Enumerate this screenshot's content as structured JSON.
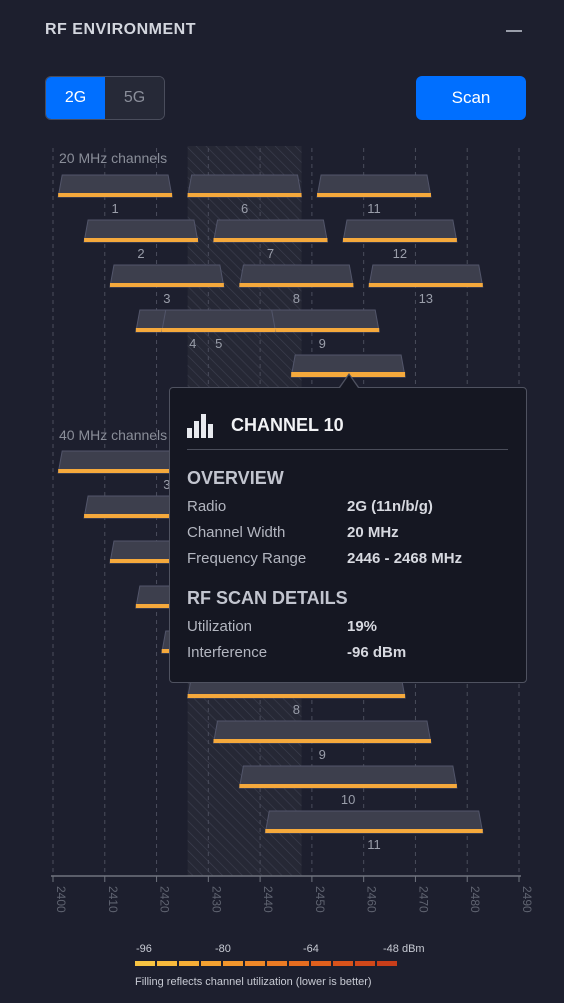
{
  "panel": {
    "title": "RF ENVIRONMENT"
  },
  "band_toggle": {
    "options": [
      "2G",
      "5G"
    ],
    "selected": "2G"
  },
  "scan_button": {
    "label": "Scan"
  },
  "colors": {
    "accent": "#006fff",
    "fill": "#f5a93c",
    "channel_block": "#3d3f4d",
    "background": "#1d1f2e"
  },
  "chart_data": {
    "type": "channel-map",
    "x_axis": {
      "ticks": [
        "2400",
        "2410",
        "2420",
        "2430",
        "2440",
        "2450",
        "2460",
        "2470",
        "2480",
        "2490"
      ],
      "min": 2400,
      "max": 2490,
      "unit": "MHz"
    },
    "highlight_range": [
      2426,
      2448
    ],
    "groups": [
      {
        "label": "20 MHz channels",
        "channels": [
          {
            "ch": "1",
            "lo": 2401,
            "hi": 2423,
            "util": 0.1
          },
          {
            "ch": "6",
            "lo": 2426,
            "hi": 2448,
            "util": 0.1
          },
          {
            "ch": "11",
            "lo": 2451,
            "hi": 2473,
            "util": 0.1
          },
          {
            "ch": "2",
            "lo": 2406,
            "hi": 2428,
            "util": 0.1
          },
          {
            "ch": "7",
            "lo": 2431,
            "hi": 2453,
            "util": 0.1
          },
          {
            "ch": "12",
            "lo": 2456,
            "hi": 2478,
            "util": 0.1
          },
          {
            "ch": "3",
            "lo": 2411,
            "hi": 2433,
            "util": 0.1
          },
          {
            "ch": "8",
            "lo": 2436,
            "hi": 2458,
            "util": 0.1
          },
          {
            "ch": "13",
            "lo": 2461,
            "hi": 2483,
            "util": 0.1
          },
          {
            "ch": "4",
            "lo": 2416,
            "hi": 2438,
            "util": 0.1
          },
          {
            "ch": "9",
            "lo": 2441,
            "hi": 2463,
            "util": 0.1
          },
          {
            "ch": "5",
            "lo": 2421,
            "hi": 2443,
            "util": 0.1
          },
          {
            "ch": "10",
            "lo": 2446,
            "hi": 2468,
            "util": 0.19
          }
        ]
      },
      {
        "label": "40 MHz channels",
        "channels": [
          {
            "ch": "3",
            "lo": 2401,
            "hi": 2443,
            "util": 0.1
          },
          {
            "ch": "4",
            "lo": 2406,
            "hi": 2448,
            "util": 0.1
          },
          {
            "ch": "5",
            "lo": 2411,
            "hi": 2453,
            "util": 0.1
          },
          {
            "ch": "6",
            "lo": 2416,
            "hi": 2458,
            "util": 0.1
          },
          {
            "ch": "7",
            "lo": 2421,
            "hi": 2463,
            "util": 0.1
          },
          {
            "ch": "8",
            "lo": 2426,
            "hi": 2468,
            "util": 0.1
          },
          {
            "ch": "9",
            "lo": 2431,
            "hi": 2473,
            "util": 0.1
          },
          {
            "ch": "10",
            "lo": 2436,
            "hi": 2478,
            "util": 0.1
          },
          {
            "ch": "11",
            "lo": 2441,
            "hi": 2483,
            "util": 0.1
          }
        ]
      }
    ]
  },
  "tooltip": {
    "icon": "signal-bars-icon",
    "title": "CHANNEL 10",
    "overview_heading": "OVERVIEW",
    "rows_overview": [
      {
        "label": "Radio",
        "value": "2G (11n/b/g)"
      },
      {
        "label": "Channel Width",
        "value": "20 MHz"
      },
      {
        "label": "Frequency Range",
        "value": "2446 - 2468 MHz"
      }
    ],
    "scan_heading": "RF SCAN DETAILS",
    "rows_scan": [
      {
        "label": "Utilization",
        "value": "19%"
      },
      {
        "label": "Interference",
        "value": "-96 dBm"
      }
    ]
  },
  "legend": {
    "labels": [
      "-96",
      "-80",
      "-64",
      "-48 dBm"
    ],
    "note": "Filling reflects channel utilization (lower is better)",
    "gradient": [
      "#f7c342",
      "#f7b93c",
      "#f6ae36",
      "#f4a231",
      "#f2962c",
      "#ef8828",
      "#eb7b24",
      "#e66d20",
      "#e0601d",
      "#d9531b",
      "#d1481a",
      "#c83e1a"
    ]
  }
}
